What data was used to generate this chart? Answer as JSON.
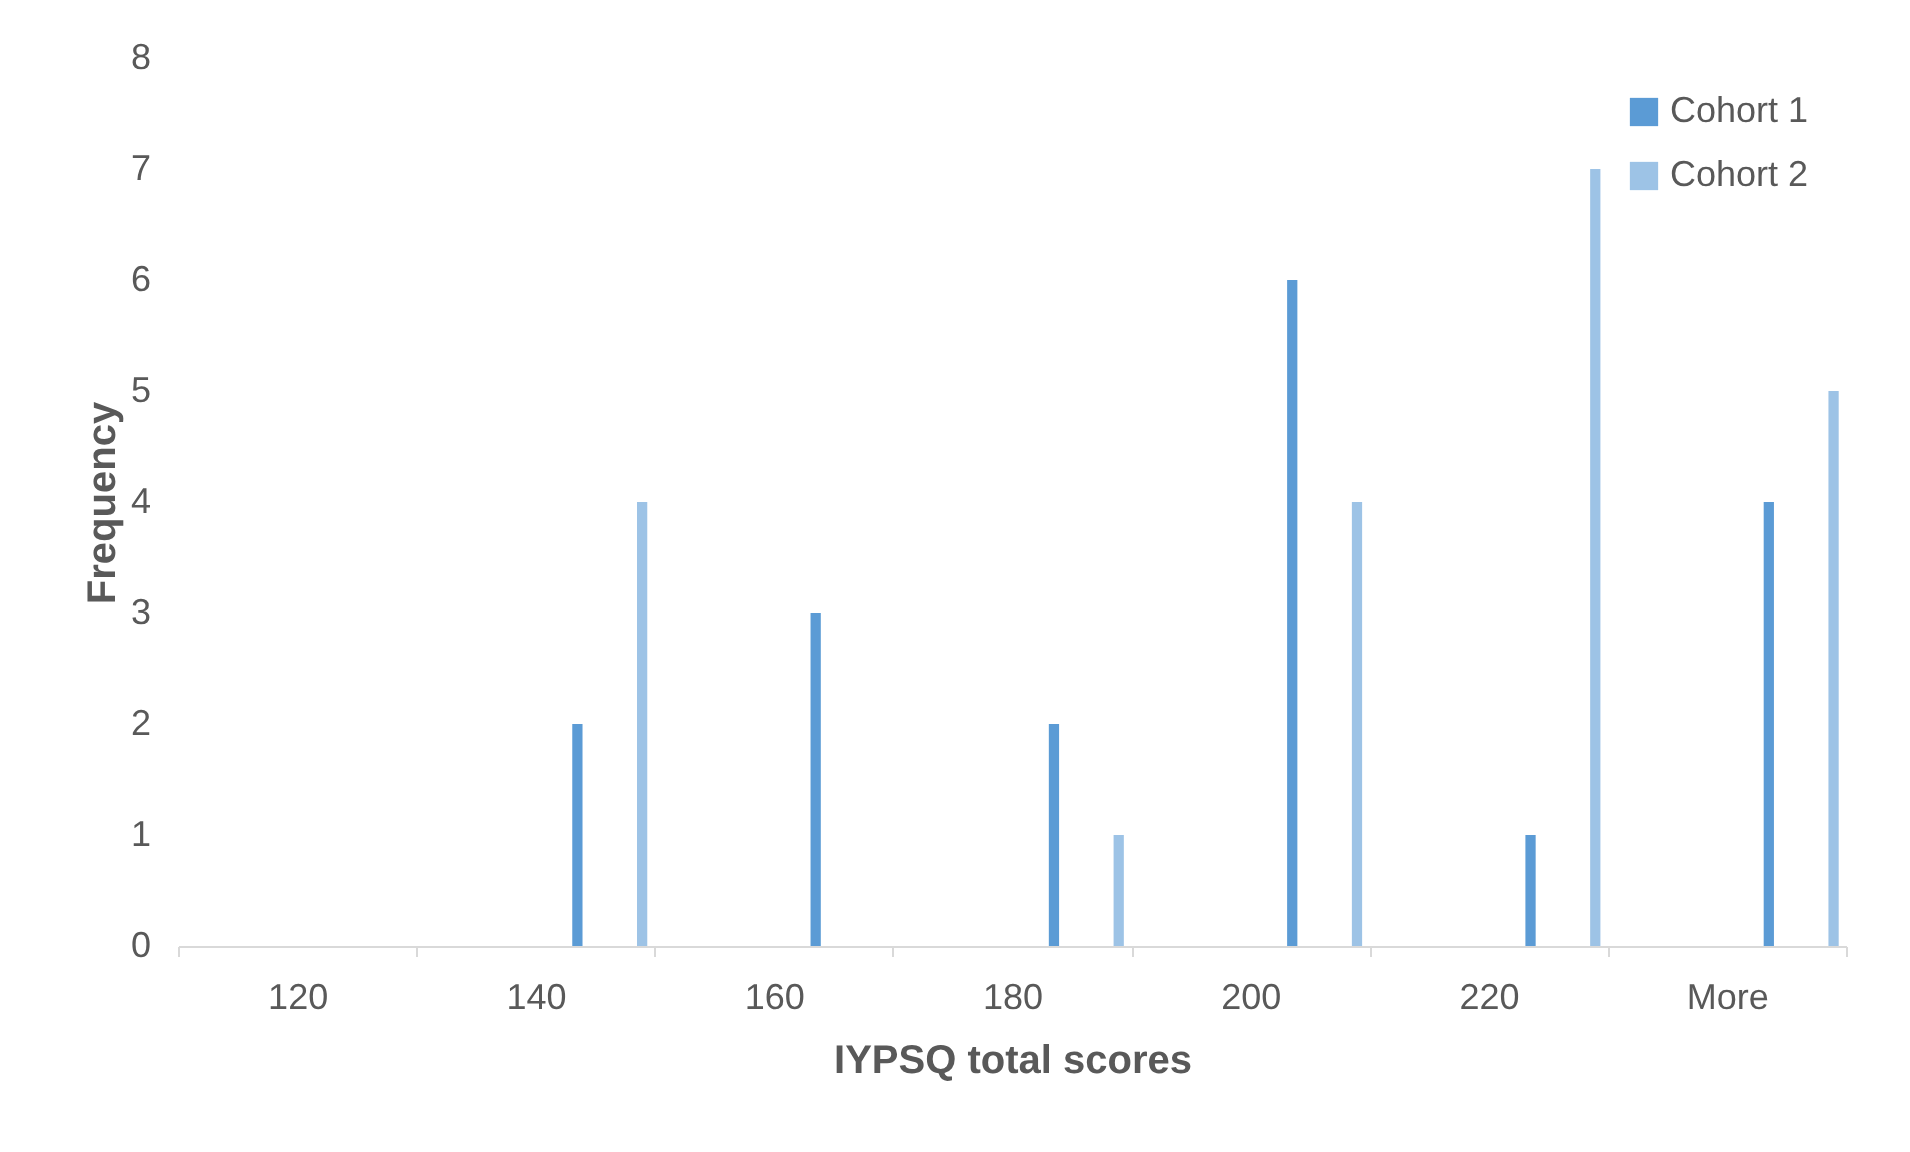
{
  "chart_data": {
    "type": "bar",
    "xlabel": "IYPSQ total scores",
    "ylabel": "Frequency",
    "categories": [
      "120",
      "140",
      "160",
      "180",
      "200",
      "220",
      "More"
    ],
    "series": [
      {
        "name": "Cohort 1",
        "color": "#5b9bd5",
        "values": [
          0,
          2,
          3,
          2,
          6,
          1,
          4
        ]
      },
      {
        "name": "Cohort 2",
        "color": "#9dc3e6",
        "values": [
          0,
          4,
          0,
          1,
          4,
          7,
          5
        ]
      }
    ],
    "ylim": [
      0,
      8
    ],
    "yticks": [
      0,
      1,
      2,
      3,
      4,
      5,
      6,
      7,
      8
    ],
    "grid": false,
    "legend": "top right"
  }
}
